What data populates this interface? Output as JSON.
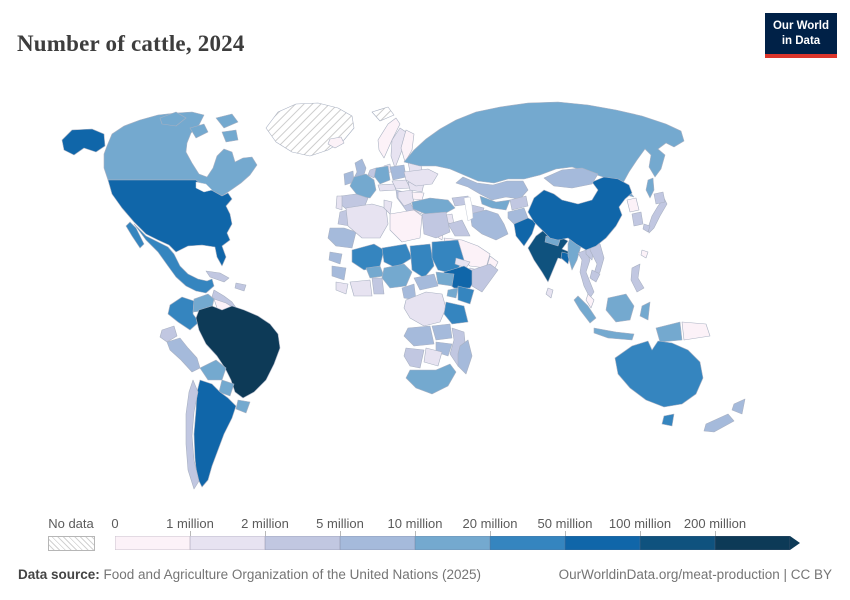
{
  "header": {
    "title": "Number of cattle, 2024"
  },
  "logo": {
    "line1": "Our World",
    "line2": "in Data",
    "bg": "#002147",
    "accent": "#dc352b"
  },
  "legend": {
    "no_data_label": "No data",
    "bins": [
      {
        "label": "0",
        "color": "#fcf2f8"
      },
      {
        "label": "1 million",
        "color": "#e7e3f1"
      },
      {
        "label": "2 million",
        "color": "#c1c7e1"
      },
      {
        "label": "5 million",
        "color": "#a5badb"
      },
      {
        "label": "10 million",
        "color": "#74a9cf"
      },
      {
        "label": "20 million",
        "color": "#3585bf"
      },
      {
        "label": "50 million",
        "color": "#1066a9"
      },
      {
        "label": "100 million",
        "color": "#0f527e"
      },
      {
        "label": "200 million",
        "color": "#0d3a57"
      }
    ]
  },
  "footer": {
    "source_label": "Data source:",
    "source_text": " Food and Agriculture Organization of the United Nations (2025)",
    "credit": "OurWorldinData.org/meat-production | CC BY"
  },
  "map": {
    "countries": {
      "greenland": "nd",
      "svalbard": "nd",
      "canada": 4,
      "usa": 6,
      "mexico": 5,
      "central-america": 2,
      "cuba": 2,
      "hispaniola": 2,
      "colombia": 5,
      "venezuela": 4,
      "guyanas": 0,
      "ecuador": 2,
      "peru": 3,
      "brazil": 8,
      "bolivia": 4,
      "paraguay": 4,
      "uruguay": 4,
      "argentina": 6,
      "chile": 2,
      "iceland": 0,
      "ireland": 3,
      "uk": 3,
      "norway": 0,
      "sweden": 1,
      "finland": 0,
      "denmark": 1,
      "baltics": 1,
      "belarus": 2,
      "poland": 3,
      "germany": 4,
      "benelux": 2,
      "france": 4,
      "spain": 2,
      "portugal": 1,
      "alpine": 1,
      "italy": 2,
      "czech-hungary": 1,
      "balkans": 1,
      "romania": 1,
      "greece": 0,
      "bulgaria": 0,
      "ukraine": 1,
      "russia": 4,
      "kazakhstan": 3,
      "uzbekistan": 4,
      "turkmenistan": 2,
      "kyrgyz-tajik": 2,
      "caucasus": 2,
      "turkey": 4,
      "syria": 1,
      "iraq": 2,
      "iran": 3,
      "afghanistan": 3,
      "pakistan": 6,
      "saudi-arabia": 0,
      "yemen": 1,
      "oman": 0,
      "levant": 0,
      "india": 7,
      "nepal": 4,
      "bangladesh": 6,
      "sri-lanka": 1,
      "myanmar": 4,
      "thailand": 2,
      "laos": 2,
      "vietnam": 2,
      "cambodia": 2,
      "malaysia": 0,
      "indonesia": 4,
      "papua-new-guinea": 0,
      "philippines": 2,
      "taiwan": 0,
      "china": 6,
      "mongolia": 3,
      "north-korea": 0,
      "south-korea": 2,
      "japan": 2,
      "morocco": 2,
      "mauritania": 3,
      "algeria": 1,
      "tunisia": 1,
      "libya": 0,
      "egypt": 2,
      "mali": 5,
      "senegal": 3,
      "guinea": 3,
      "sierra-liberia": 1,
      "ivory-ghana": 1,
      "togo-benin": 2,
      "burkina-faso": 4,
      "niger": 5,
      "nigeria": 4,
      "chad": 5,
      "sudan": 5,
      "eritrea": 1,
      "ethiopia": 6,
      "somalia": 2,
      "south-sudan": 4,
      "car": 3,
      "cameroon": 3,
      "uganda": 4,
      "kenya": 5,
      "drc": 1,
      "tanzania": 5,
      "angola": 3,
      "zambia": 3,
      "mozambique": 2,
      "zimbabwe": 3,
      "botswana": 1,
      "namibia": 2,
      "south-africa": 4,
      "madagascar": 3,
      "australia": 5,
      "new-zealand": 3
    }
  }
}
